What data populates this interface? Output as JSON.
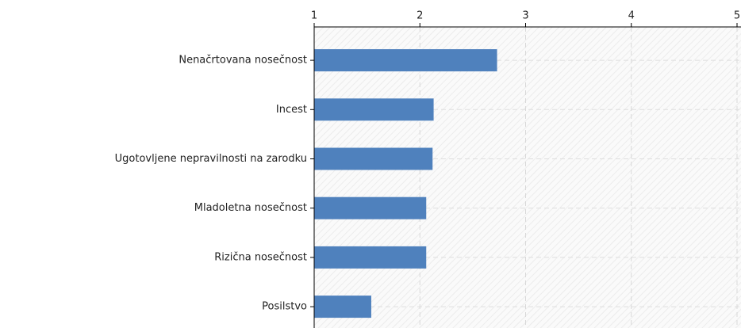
{
  "chart_data": {
    "type": "bar",
    "orientation": "horizontal",
    "categories": [
      "Nenačrtovana nosečnost",
      "Incest",
      "Ugotovljene nepravilnosti na zarodku",
      "Mladoletna nosečnost",
      "Rizična nosečnost",
      "Posilstvo"
    ],
    "values": [
      2.73,
      2.13,
      2.12,
      2.06,
      2.06,
      1.54
    ],
    "color": "#4f81bd",
    "xlim": [
      1,
      5
    ],
    "xticks": [
      1,
      2,
      3,
      4,
      5
    ],
    "grid": true
  }
}
